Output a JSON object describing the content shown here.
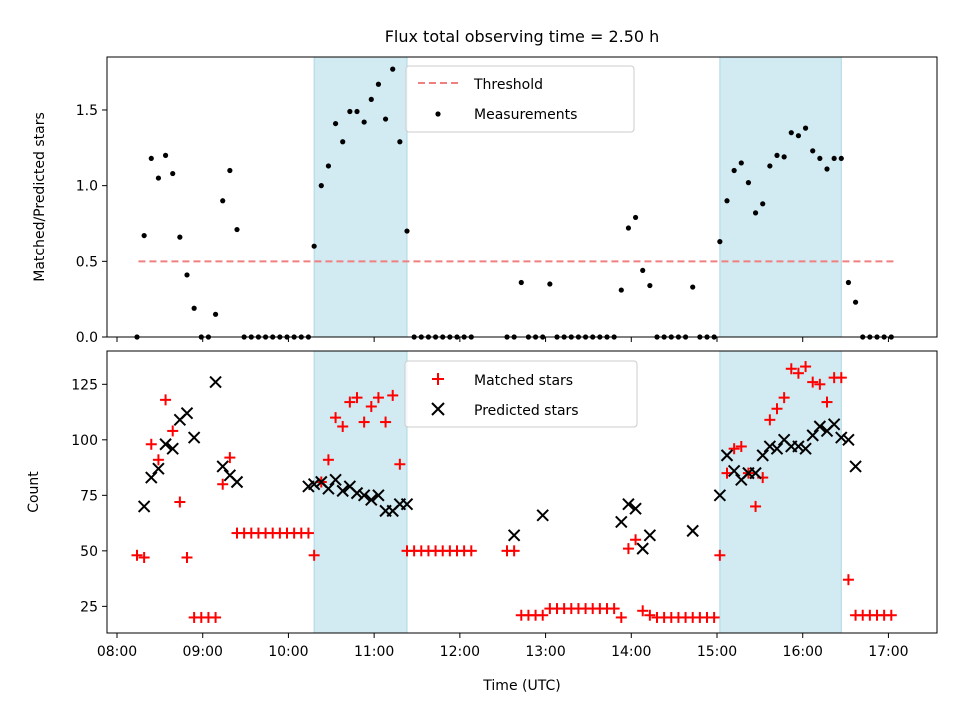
{
  "figure": {
    "title": "Flux total observing time = 2.50 h"
  },
  "colors": {
    "threshold": "#f08080",
    "shade": "#add8e6",
    "matched": "#ff0000",
    "predicted": "#000000",
    "measurement": "#000000"
  },
  "chart_data": [
    {
      "type": "scatter",
      "ylabel": "Matched/Predicted stars",
      "xlim": [
        "07:53",
        "17:34"
      ],
      "ylim": [
        0,
        1.85
      ],
      "yticks": [
        "0.0",
        "0.5",
        "1.0",
        "1.5"
      ],
      "grid": false,
      "legend_position": "top-center",
      "shaded_spans": [
        [
          "10:18",
          "11:23"
        ],
        [
          "15:02",
          "16:27"
        ]
      ],
      "threshold": {
        "name": "Threshold",
        "value": 0.5,
        "x_range": [
          "08:15",
          "17:05"
        ]
      },
      "series": [
        {
          "name": "Measurements",
          "x": [
            "08:14",
            "08:19",
            "08:24",
            "08:29",
            "08:34",
            "08:39",
            "08:44",
            "08:49",
            "08:54",
            "08:59",
            "09:04",
            "09:09",
            "09:14",
            "09:19",
            "09:24",
            "09:29",
            "09:34",
            "09:39",
            "09:44",
            "09:49",
            "09:54",
            "09:59",
            "10:04",
            "10:09",
            "10:14",
            "10:18",
            "10:23",
            "10:28",
            "10:33",
            "10:38",
            "10:43",
            "10:48",
            "10:53",
            "10:58",
            "11:03",
            "11:08",
            "11:13",
            "11:18",
            "11:23",
            "11:28",
            "11:33",
            "11:38",
            "11:43",
            "11:48",
            "11:53",
            "11:58",
            "12:03",
            "12:08",
            "12:33",
            "12:38",
            "12:43",
            "12:48",
            "12:53",
            "12:58",
            "13:03",
            "13:08",
            "13:13",
            "13:18",
            "13:23",
            "13:28",
            "13:33",
            "13:38",
            "13:43",
            "13:48",
            "13:53",
            "13:58",
            "14:03",
            "14:08",
            "14:13",
            "14:18",
            "14:23",
            "14:28",
            "14:33",
            "14:38",
            "14:43",
            "14:48",
            "14:53",
            "14:58",
            "15:02",
            "15:07",
            "15:12",
            "15:17",
            "15:22",
            "15:27",
            "15:32",
            "15:37",
            "15:42",
            "15:47",
            "15:52",
            "15:57",
            "16:02",
            "16:07",
            "16:12",
            "16:17",
            "16:22",
            "16:27",
            "16:32",
            "16:37",
            "16:42",
            "16:47",
            "16:52",
            "16:57",
            "17:02"
          ],
          "y": [
            0,
            0.67,
            1.18,
            1.05,
            1.2,
            1.08,
            0.66,
            0.41,
            0.19,
            0,
            0,
            0.15,
            0.9,
            1.1,
            0.71,
            0,
            0,
            0,
            0,
            0,
            0,
            0,
            0,
            0,
            0,
            0.6,
            1.0,
            1.13,
            1.41,
            1.29,
            1.49,
            1.49,
            1.42,
            1.57,
            1.67,
            1.44,
            1.77,
            1.29,
            0.7,
            0,
            0,
            0,
            0,
            0,
            0,
            0,
            0,
            0,
            0,
            0,
            0.36,
            0,
            0,
            0,
            0.35,
            0,
            0,
            0,
            0,
            0,
            0,
            0,
            0,
            0,
            0.31,
            0.72,
            0.79,
            0.44,
            0.34,
            0,
            0,
            0,
            0,
            0,
            0.33,
            0,
            0,
            0,
            0.63,
            0.9,
            1.1,
            1.15,
            1.02,
            0.82,
            0.88,
            1.13,
            1.2,
            1.19,
            1.35,
            1.33,
            1.38,
            1.23,
            1.18,
            1.11,
            1.18,
            1.18,
            0.36,
            0.23,
            0,
            0,
            0,
            0,
            0
          ]
        }
      ]
    },
    {
      "type": "scatter",
      "xlabel": "Time (UTC)",
      "ylabel": "Count",
      "xlim": [
        "07:53",
        "17:34"
      ],
      "ylim": [
        13,
        140
      ],
      "yticks": [
        "25",
        "50",
        "75",
        "100",
        "125"
      ],
      "xticks": [
        "08:00",
        "09:00",
        "10:00",
        "11:00",
        "12:00",
        "13:00",
        "14:00",
        "15:00",
        "16:00",
        "17:00"
      ],
      "grid": false,
      "legend_position": "top-center",
      "shaded_spans": [
        [
          "10:18",
          "11:23"
        ],
        [
          "15:02",
          "16:27"
        ]
      ],
      "series": [
        {
          "name": "Matched stars",
          "x": [
            "08:14",
            "08:19",
            "08:24",
            "08:29",
            "08:34",
            "08:39",
            "08:44",
            "08:49",
            "08:54",
            "08:59",
            "09:04",
            "09:09",
            "09:14",
            "09:19",
            "09:24",
            "09:29",
            "09:34",
            "09:39",
            "09:44",
            "09:49",
            "09:54",
            "09:59",
            "10:04",
            "10:09",
            "10:14",
            "10:18",
            "10:23",
            "10:28",
            "10:33",
            "10:38",
            "10:43",
            "10:48",
            "10:53",
            "10:58",
            "11:03",
            "11:08",
            "11:13",
            "11:18",
            "11:23",
            "11:28",
            "11:33",
            "11:38",
            "11:43",
            "11:48",
            "11:53",
            "11:58",
            "12:03",
            "12:08",
            "12:33",
            "12:38",
            "12:43",
            "12:48",
            "12:53",
            "12:58",
            "13:03",
            "13:08",
            "13:13",
            "13:18",
            "13:23",
            "13:28",
            "13:33",
            "13:38",
            "13:43",
            "13:48",
            "13:53",
            "13:58",
            "14:03",
            "14:08",
            "14:13",
            "14:18",
            "14:23",
            "14:28",
            "14:33",
            "14:38",
            "14:43",
            "14:48",
            "14:53",
            "14:58",
            "15:02",
            "15:07",
            "15:12",
            "15:17",
            "15:22",
            "15:27",
            "15:32",
            "15:37",
            "15:42",
            "15:47",
            "15:52",
            "15:57",
            "16:02",
            "16:07",
            "16:12",
            "16:17",
            "16:22",
            "16:27",
            "16:32",
            "16:37",
            "16:42",
            "16:47",
            "16:52",
            "16:57",
            "17:02"
          ],
          "y": [
            48,
            47,
            98,
            91,
            118,
            104,
            72,
            47,
            20,
            20,
            20,
            20,
            80,
            92,
            58,
            58,
            58,
            58,
            58,
            58,
            58,
            58,
            58,
            58,
            58,
            48,
            81,
            91,
            110,
            106,
            117,
            119,
            108,
            115,
            119,
            108,
            120,
            89,
            50,
            50,
            50,
            50,
            50,
            50,
            50,
            50,
            50,
            50,
            50,
            50,
            21,
            21,
            21,
            21,
            24,
            24,
            24,
            24,
            24,
            24,
            24,
            24,
            24,
            24,
            20,
            51,
            55,
            23,
            21,
            20,
            20,
            20,
            20,
            20,
            20,
            20,
            20,
            20,
            48,
            85,
            96,
            97,
            85,
            70,
            83,
            109,
            114,
            119,
            132,
            130,
            133,
            126,
            125,
            117,
            128,
            128,
            37,
            21,
            21,
            21,
            21,
            21,
            21
          ]
        },
        {
          "name": "Predicted stars",
          "x": [
            "08:19",
            "08:24",
            "08:29",
            "08:34",
            "08:39",
            "08:44",
            "08:49",
            "08:54",
            "09:09",
            "09:14",
            "09:19",
            "09:24",
            "10:14",
            "10:18",
            "10:23",
            "10:28",
            "10:33",
            "10:38",
            "10:43",
            "10:48",
            "10:53",
            "10:58",
            "11:03",
            "11:08",
            "11:13",
            "11:18",
            "11:23",
            "12:38",
            "12:58",
            "13:53",
            "13:58",
            "14:03",
            "14:08",
            "14:13",
            "14:43",
            "15:02",
            "15:07",
            "15:12",
            "15:17",
            "15:22",
            "15:27",
            "15:32",
            "15:37",
            "15:42",
            "15:47",
            "15:52",
            "15:57",
            "16:02",
            "16:07",
            "16:12",
            "16:17",
            "16:22",
            "16:27",
            "16:32",
            "16:37"
          ],
          "y": [
            70,
            83,
            87,
            98,
            96,
            109,
            112,
            101,
            126,
            88,
            84,
            81,
            79,
            80,
            81,
            78,
            82,
            77,
            79,
            76,
            75,
            73,
            75,
            68,
            68,
            71,
            71,
            57,
            66,
            63,
            71,
            69,
            51,
            57,
            59,
            75,
            93,
            86,
            82,
            85,
            85,
            93,
            97,
            96,
            100,
            97,
            97,
            96,
            102,
            106,
            104,
            107,
            101,
            100,
            88
          ]
        }
      ]
    }
  ]
}
